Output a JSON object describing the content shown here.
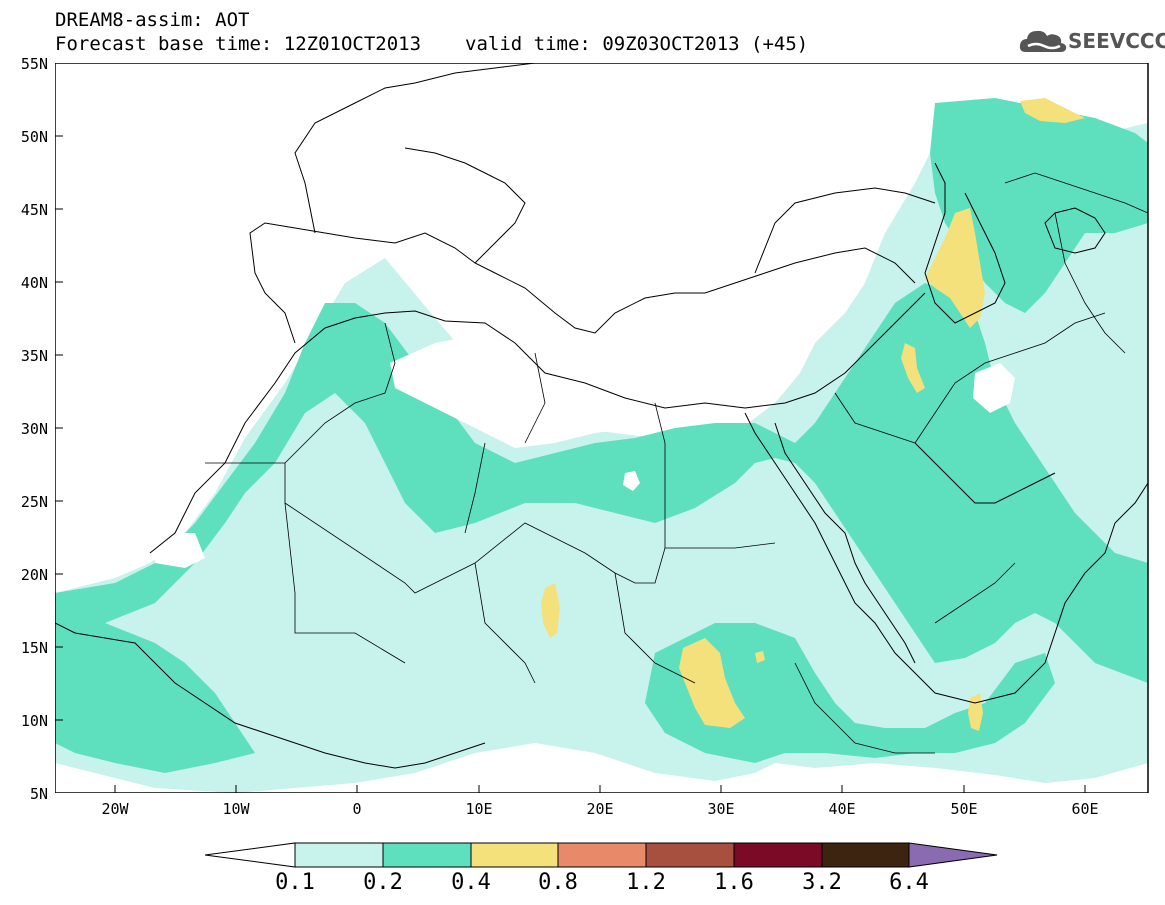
{
  "header": {
    "model_line": "DREAM8-assim: AOT",
    "base_time": "Forecast base time: 12Z01OCT2013",
    "valid_time": "valid time: 09Z03OCT2013 (+45)",
    "logo_text": "SEEVCCC",
    "logo_icon": "cloud-logo-icon"
  },
  "map": {
    "lon_range": [
      -25,
      65
    ],
    "lat_range": [
      5,
      55
    ],
    "lat_labels": [
      "55N",
      "50N",
      "45N",
      "40N",
      "35N",
      "30N",
      "25N",
      "20N",
      "15N",
      "10N",
      "5N"
    ],
    "lon_labels": [
      "20W",
      "10W",
      "0",
      "10E",
      "20E",
      "30E",
      "40E",
      "50E",
      "60E"
    ],
    "colors": {
      "c01": "#c8f2ec",
      "c02": "#5edfbe",
      "c04": "#f4e17c",
      "land_line": "#000000",
      "frame": "#000000"
    }
  },
  "colorbar": {
    "labels": [
      "0.1",
      "0.2",
      "0.4",
      "0.8",
      "1.2",
      "1.6",
      "3.2",
      "6.4"
    ],
    "colors": [
      "#c8f2ec",
      "#5edfbe",
      "#f4e17c",
      "#e8896a",
      "#a8503f",
      "#7a0a26",
      "#3d2410"
    ],
    "under_color": "#ffffff",
    "over_color": "#8a6ab0"
  }
}
